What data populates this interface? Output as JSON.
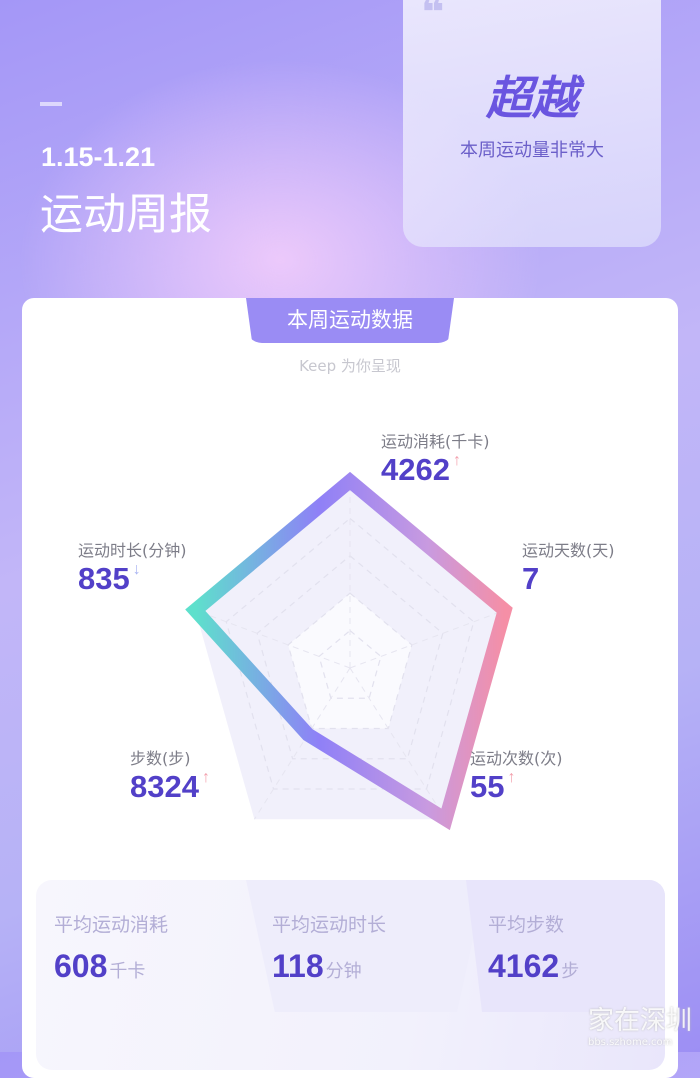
{
  "header": {
    "date_range": "1.15-1.21",
    "title": "运动周报"
  },
  "badge": {
    "title": "超越",
    "subtitle": "本周运动量非常大"
  },
  "card": {
    "tab_label": "本周运动数据",
    "subtitle": "Keep 为你呈现"
  },
  "radar": {
    "axes": [
      {
        "label": "运动消耗(千卡)",
        "value": "4262",
        "trend": "up",
        "level": 1.0
      },
      {
        "label": "运动天数(天)",
        "value": "7",
        "trend": "",
        "level": 1.0
      },
      {
        "label": "运动次数(次)",
        "value": "55",
        "trend": "up",
        "level": 1.0
      },
      {
        "label": "步数(步)",
        "value": "8324",
        "trend": "up",
        "level": 0.44
      },
      {
        "label": "运动时长(分钟)",
        "value": "835",
        "trend": "down",
        "level": 1.0
      }
    ],
    "up_arrow": "↑",
    "down_arrow": "↓",
    "up_color": "#f3a0ad",
    "down_color": "#a9b4f2"
  },
  "averages": [
    {
      "label": "平均运动消耗",
      "value": "608",
      "unit": "千卡"
    },
    {
      "label": "平均运动时长",
      "value": "118",
      "unit": "分钟"
    },
    {
      "label": "平均步数",
      "value": "4162",
      "unit": "步"
    }
  ],
  "watermark": {
    "text": "家在深圳",
    "url": "bbs.szhome.com"
  }
}
